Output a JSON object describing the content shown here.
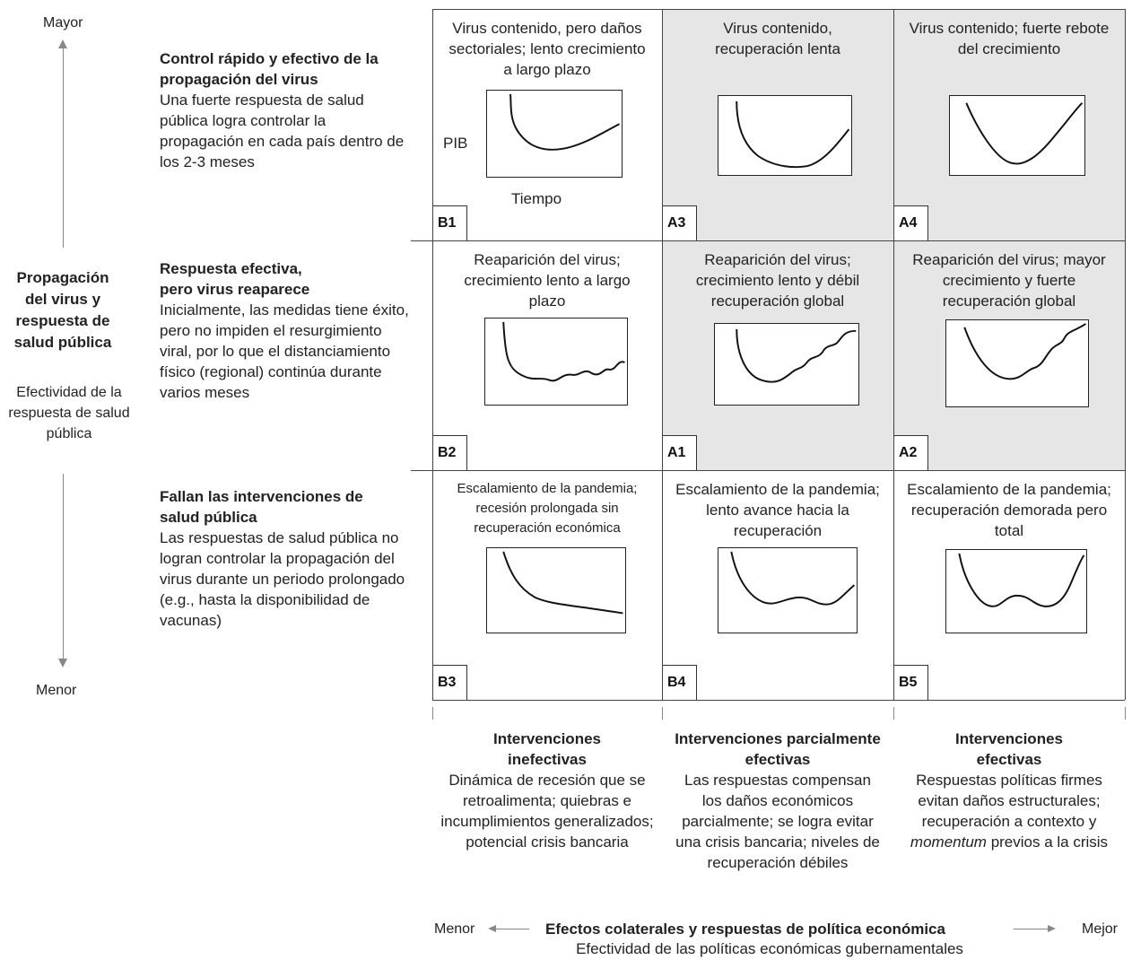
{
  "y_axis": {
    "top": "Mayor",
    "bottom": "Menor",
    "title": "Propagación del virus y respuesta de salud pública",
    "subtitle": "Efectividad de la respuesta de salud pública"
  },
  "rows": [
    {
      "title": "Control rápido y efectivo de la propagación del virus",
      "desc": "Una fuerte respuesta de salud pública logra controlar la propagación en cada país dentro de los 2-3 meses"
    },
    {
      "title": "Respuesta efectiva, pero virus reaparece",
      "desc": "Inicialmente, las medidas tiene éxito, pero no impiden el resurgimiento viral, por lo que el distanciamiento físico (regional) continúa durante varios meses"
    },
    {
      "title": "Fallan las intervenciones de salud pública",
      "desc": "Las respuestas de salud pública no logran controlar la propagación del virus durante un periodo prolongado (e.g., hasta la disponibilidad de vacunas)"
    }
  ],
  "cells": [
    {
      "id": "B1",
      "text": "Virus contenido, pero daños sectoriales; lento crecimiento a largo plazo",
      "shaded": false
    },
    {
      "id": "A3",
      "text": "Virus contenido, recuperación lenta",
      "shaded": true
    },
    {
      "id": "A4",
      "text": "Virus contenido; fuerte rebote del crecimiento",
      "shaded": true
    },
    {
      "id": "B2",
      "text": "Reaparición del virus; crecimiento lento a largo plazo",
      "shaded": false
    },
    {
      "id": "A1",
      "text": "Reaparición del virus; crecimiento lento y débil recuperación global",
      "shaded": true
    },
    {
      "id": "A2",
      "text": "Reaparición del virus; mayor crecimiento y fuerte recuperación global",
      "shaded": true
    },
    {
      "id": "B3",
      "text": "Escalamiento de la pandemia; recesión prolongada sin recuperación económica",
      "shaded": false
    },
    {
      "id": "B4",
      "text": "Escalamiento de la pandemia; lento avance hacia la recuperación",
      "shaded": false
    },
    {
      "id": "B5",
      "text": "Escalamiento de la pandemia; recuperación demorada pero total",
      "shaded": false
    }
  ],
  "mini_axis": {
    "y": "PIB",
    "x": "Tiempo"
  },
  "columns": [
    {
      "title": "Intervenciones inefectivas",
      "desc": "Dinámica de recesión que se retroalimenta; quiebras e incumplimientos generalizados; potencial crisis bancaria"
    },
    {
      "title": "Intervenciones parcialmente efectivas",
      "desc": "Las respuestas compensan los daños económicos parcialmente; se logra evitar una crisis bancaria; niveles de recuperación débiles"
    },
    {
      "title": "Intervenciones efectivas",
      "desc_part1": "Respuestas políticas firmes evitan daños estructurales; recuperación a contexto y",
      "desc_italic": "momentum",
      "desc_part2": "previos a la crisis"
    }
  ],
  "x_axis": {
    "left": "Menor",
    "right": "Mejor",
    "title": "Efectos colaterales y respuestas de política económica",
    "subtitle": "Efectividad de las políticas económicas gubernamentales"
  },
  "colors": {
    "shaded": "#e6e6e6",
    "line": "#111111",
    "grid": "#444444"
  }
}
